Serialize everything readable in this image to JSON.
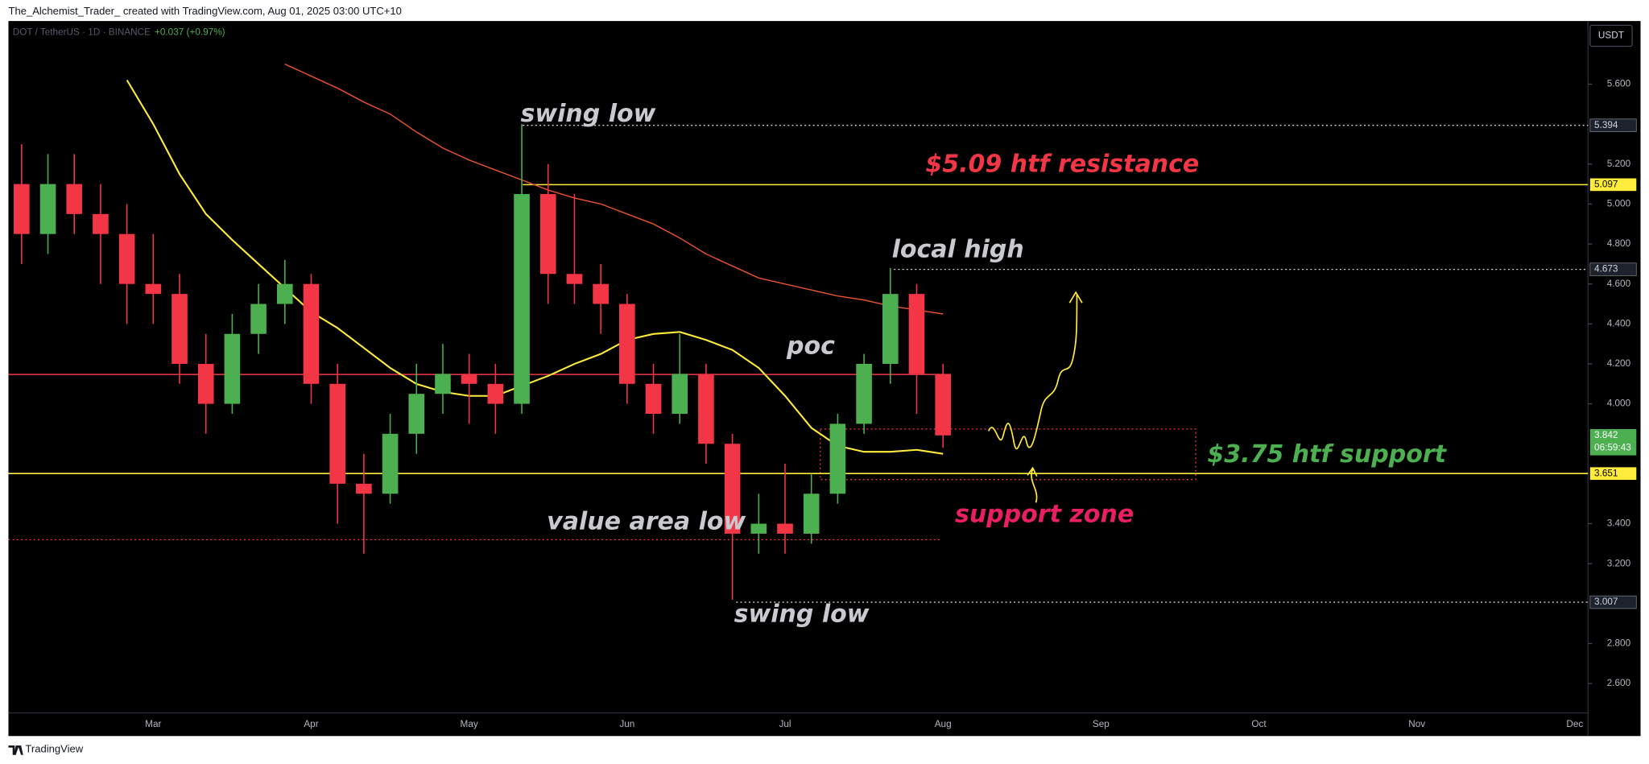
{
  "chart_data": {
    "type": "candlestick",
    "title": "The_Alchemist_Trader_ created with TradingView.com, Aug 01, 2025 03:00 UTC+10",
    "subtitle": "DOT / TetherUS · 1D · BINANCE",
    "change": "+0.037 (+0.97%)",
    "currency": "USDT",
    "brand": "TradingView",
    "countdown": "06:59:43",
    "up_color": "#4caf50",
    "down_color": "#f23645",
    "ylim": [
      2.453,
      5.916
    ],
    "yticks": [
      {
        "value": 5.6,
        "label": "5.600"
      },
      {
        "value": 5.2,
        "label": "5.200"
      },
      {
        "value": 5.0,
        "label": "5.000"
      },
      {
        "value": 4.8,
        "label": "4.800"
      },
      {
        "value": 4.6,
        "label": "4.600"
      },
      {
        "value": 4.4,
        "label": "4.400"
      },
      {
        "value": 4.2,
        "label": "4.200"
      },
      {
        "value": 4.0,
        "label": "4.000"
      },
      {
        "value": 3.4,
        "label": "3.400"
      },
      {
        "value": 3.2,
        "label": "3.200"
      },
      {
        "value": 2.8,
        "label": "2.800"
      },
      {
        "value": 2.6,
        "label": "2.600"
      }
    ],
    "categories": [
      null,
      null,
      null,
      null,
      null,
      "Mar",
      null,
      null,
      null,
      null,
      null,
      "Apr",
      null,
      null,
      null,
      null,
      null,
      "May",
      null,
      null,
      null,
      null,
      null,
      "Jun",
      null,
      null,
      null,
      null,
      null,
      "Jul",
      null,
      null,
      null,
      null,
      null,
      "Aug",
      null,
      null,
      null,
      null,
      null,
      "Sep",
      null,
      null,
      null,
      null,
      null,
      "Oct",
      null,
      null,
      null,
      null,
      null,
      "Nov",
      null,
      null,
      null,
      null,
      null,
      "Dec"
    ],
    "open": [
      5.1,
      4.85,
      5.1,
      4.95,
      4.85,
      4.6,
      4.55,
      4.2,
      4.0,
      4.35,
      4.5,
      4.6,
      4.1,
      3.6,
      3.55,
      3.85,
      4.05,
      4.15,
      4.1,
      4.0,
      5.05,
      4.65,
      4.6,
      4.5,
      4.1,
      3.95,
      4.15,
      3.8,
      3.35,
      3.4,
      3.35,
      3.55,
      3.9,
      4.2,
      4.55,
      4.15,
      null,
      null,
      null,
      null,
      null,
      null,
      null,
      null,
      null,
      null,
      null,
      null,
      null,
      null,
      null,
      null,
      null,
      null,
      null,
      null,
      null,
      null,
      null,
      null
    ],
    "high": [
      5.3,
      5.25,
      5.25,
      5.1,
      5.0,
      4.85,
      4.65,
      4.35,
      4.45,
      4.6,
      4.72,
      4.65,
      4.2,
      3.75,
      3.95,
      4.2,
      4.3,
      4.25,
      4.2,
      5.4,
      5.2,
      5.05,
      4.7,
      4.55,
      4.2,
      4.35,
      4.2,
      3.85,
      3.55,
      3.7,
      3.65,
      3.95,
      4.25,
      4.68,
      4.6,
      4.2,
      null,
      null,
      null,
      null,
      null,
      null,
      null,
      null,
      null,
      null,
      null,
      null,
      null,
      null,
      null,
      null,
      null,
      null,
      null,
      null,
      null,
      null,
      null,
      null
    ],
    "low": [
      4.7,
      4.75,
      4.85,
      4.6,
      4.4,
      4.4,
      4.1,
      3.85,
      3.95,
      4.25,
      4.4,
      4.0,
      3.4,
      3.25,
      3.5,
      3.75,
      3.95,
      3.9,
      3.85,
      3.95,
      4.5,
      4.5,
      4.35,
      4.0,
      3.85,
      3.9,
      3.7,
      3.02,
      3.25,
      3.25,
      3.3,
      3.5,
      3.85,
      4.1,
      3.95,
      3.78,
      null,
      null,
      null,
      null,
      null,
      null,
      null,
      null,
      null,
      null,
      null,
      null,
      null,
      null,
      null,
      null,
      null,
      null,
      null,
      null,
      null,
      null,
      null,
      null
    ],
    "close": [
      4.85,
      5.1,
      4.95,
      4.85,
      4.6,
      4.55,
      4.2,
      4.0,
      4.35,
      4.5,
      4.6,
      4.1,
      3.6,
      3.55,
      3.85,
      4.05,
      4.15,
      4.1,
      4.0,
      5.05,
      4.65,
      4.6,
      4.5,
      4.1,
      3.95,
      4.15,
      3.8,
      3.35,
      3.4,
      3.35,
      3.55,
      3.9,
      4.2,
      4.55,
      4.15,
      3.842,
      null,
      null,
      null,
      null,
      null,
      null,
      null,
      null,
      null,
      null,
      null,
      null,
      null,
      null,
      null,
      null,
      null,
      null,
      null,
      null,
      null,
      null,
      null,
      null
    ],
    "overlays": [
      {
        "color": "#ffeb3b",
        "values": [
          null,
          null,
          null,
          null,
          5.62,
          5.4,
          5.15,
          4.95,
          4.82,
          4.7,
          4.58,
          4.46,
          4.38,
          4.28,
          4.18,
          4.1,
          4.06,
          4.04,
          4.04,
          4.09,
          4.14,
          4.2,
          4.25,
          4.32,
          4.35,
          4.36,
          4.32,
          4.27,
          4.18,
          4.04,
          3.88,
          3.79,
          3.76,
          3.76,
          3.77,
          3.75,
          null,
          null,
          null,
          null,
          null,
          null,
          null,
          null,
          null,
          null,
          null,
          null,
          null,
          null,
          null,
          null,
          null,
          null,
          null,
          null,
          null,
          null,
          null,
          null
        ]
      },
      {
        "color": "#e8522c",
        "values": [
          null,
          null,
          null,
          null,
          null,
          null,
          null,
          null,
          null,
          null,
          5.7,
          5.64,
          5.58,
          5.51,
          5.45,
          5.36,
          5.28,
          5.22,
          5.17,
          5.12,
          5.07,
          5.03,
          5.0,
          4.95,
          4.9,
          4.83,
          4.75,
          4.69,
          4.63,
          4.6,
          4.57,
          4.54,
          4.52,
          4.49,
          4.47,
          4.45,
          null,
          null,
          null,
          null,
          null,
          null,
          null,
          null,
          null,
          null,
          null,
          null,
          null,
          null,
          null,
          null,
          null,
          null,
          null,
          null,
          null,
          null,
          null,
          null
        ]
      }
    ],
    "levels": [
      {
        "value": 5.394,
        "color": "#d1d4dc",
        "style": "dotted",
        "tag": true
      },
      {
        "value": 5.097,
        "color": "#ffeb3b",
        "style": "solid",
        "tag": true
      },
      {
        "value": 4.673,
        "color": "#d1d4dc",
        "style": "dotted",
        "tag": true
      },
      {
        "value": 4.147,
        "color": "#f23645",
        "style": "solid",
        "tag": false
      },
      {
        "value": 3.651,
        "color": "#ffeb3b",
        "style": "solid",
        "tag": true
      },
      {
        "value": 3.32,
        "color": "#f23645",
        "style": "dotted",
        "tag": false
      },
      {
        "value": 3.007,
        "color": "#d1d4dc",
        "style": "dotted",
        "tag": true
      }
    ],
    "zone": {
      "top": 3.874,
      "bottom": 3.621,
      "color": "#f23645"
    },
    "annotations": [
      {
        "text": "swing low",
        "color": "#c8cad0"
      },
      {
        "text": "$5.09 htf resistance",
        "color": "#f23645"
      },
      {
        "text": "local high",
        "color": "#c8cad0"
      },
      {
        "text": "poc",
        "color": "#c8cad0"
      },
      {
        "text": "$3.75 htf support",
        "color": "#4caf50"
      },
      {
        "text": "support zone",
        "color": "#e91e63"
      },
      {
        "text": "value area low",
        "color": "#c8cad0"
      },
      {
        "text": "swing low",
        "color": "#c8cad0"
      }
    ]
  }
}
